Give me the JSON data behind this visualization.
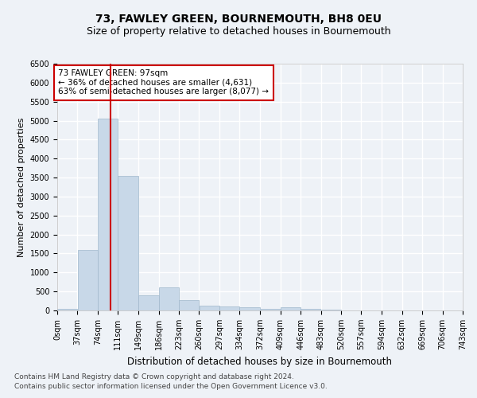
{
  "title": "73, FAWLEY GREEN, BOURNEMOUTH, BH8 0EU",
  "subtitle": "Size of property relative to detached houses in Bournemouth",
  "xlabel": "Distribution of detached houses by size in Bournemouth",
  "ylabel": "Number of detached properties",
  "bin_edges": [
    0,
    37,
    74,
    111,
    149,
    186,
    223,
    260,
    297,
    334,
    372,
    409,
    446,
    483,
    520,
    557,
    594,
    632,
    669,
    706,
    743
  ],
  "bar_heights": [
    50,
    1600,
    5050,
    3550,
    400,
    600,
    275,
    125,
    100,
    75,
    50,
    75,
    50,
    20,
    10,
    5,
    5,
    3,
    2,
    1
  ],
  "bar_color": "#c8d8e8",
  "bar_edgecolor": "#a0b8cc",
  "red_line_x": 97,
  "annotation_text": "73 FAWLEY GREEN: 97sqm\n← 36% of detached houses are smaller (4,631)\n63% of semi-detached houses are larger (8,077) →",
  "annotation_box_color": "#ffffff",
  "annotation_box_edgecolor": "#cc0000",
  "ylim": [
    0,
    6500
  ],
  "yticks": [
    0,
    500,
    1000,
    1500,
    2000,
    2500,
    3000,
    3500,
    4000,
    4500,
    5000,
    5500,
    6000,
    6500
  ],
  "footer1": "Contains HM Land Registry data © Crown copyright and database right 2024.",
  "footer2": "Contains public sector information licensed under the Open Government Licence v3.0.",
  "background_color": "#eef2f7",
  "plot_background_color": "#eef2f7",
  "grid_color": "#ffffff",
  "title_fontsize": 10,
  "subtitle_fontsize": 9,
  "xlabel_fontsize": 8.5,
  "ylabel_fontsize": 8,
  "tick_fontsize": 7,
  "annotation_fontsize": 7.5,
  "footer_fontsize": 6.5
}
